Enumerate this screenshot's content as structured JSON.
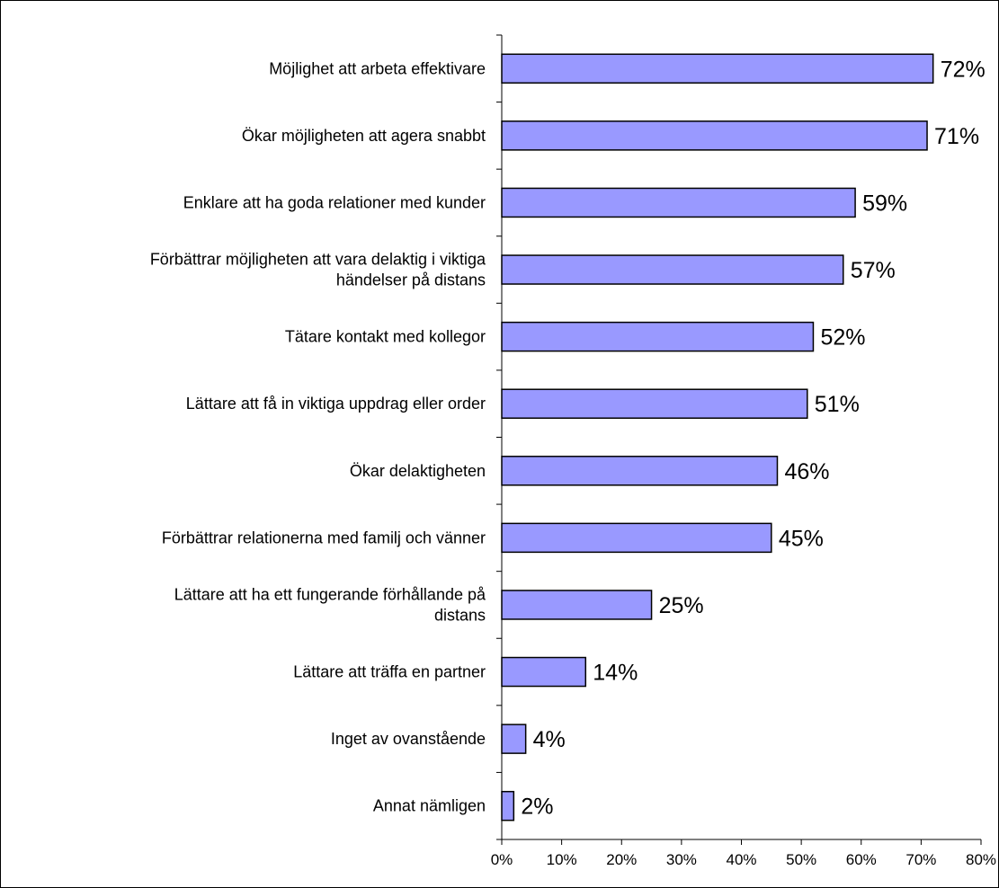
{
  "chart_data": {
    "type": "bar",
    "orientation": "horizontal",
    "title": "",
    "xlabel": "",
    "ylabel": "",
    "categories": [
      "Möjlighet att arbeta effektivare",
      "Ökar möjligheten att agera snabbt",
      "Enklare att ha goda relationer med kunder",
      "Förbättrar möjligheten att vara delaktig i viktiga händelser på distans",
      "Tätare kontakt med kollegor",
      "Lättare att få in viktiga uppdrag eller order",
      "Ökar delaktigheten",
      "Förbättrar relationerna med familj och vänner",
      "Lättare att ha ett fungerande förhållande på distans",
      "Lättare att träffa en partner",
      "Inget av ovanstående",
      "Annat nämligen"
    ],
    "category_lines": [
      [
        "Möjlighet att arbeta effektivare"
      ],
      [
        "Ökar möjligheten att agera snabbt"
      ],
      [
        "Enklare att ha goda relationer med kunder"
      ],
      [
        "Förbättrar möjligheten att vara delaktig i viktiga",
        "händelser på distans"
      ],
      [
        "Tätare kontakt med kollegor"
      ],
      [
        "Lättare att få in viktiga uppdrag eller order"
      ],
      [
        "Ökar delaktigheten"
      ],
      [
        "Förbättrar relationerna med familj och vänner"
      ],
      [
        "Lättare att ha ett fungerande förhållande på",
        "distans"
      ],
      [
        "Lättare att träffa en partner"
      ],
      [
        "Inget av ovanstående"
      ],
      [
        "Annat nämligen"
      ]
    ],
    "values": [
      72,
      71,
      59,
      57,
      52,
      51,
      46,
      45,
      25,
      14,
      4,
      2
    ],
    "value_labels": [
      "72%",
      "71%",
      "59%",
      "57%",
      "52%",
      "51%",
      "46%",
      "45%",
      "25%",
      "14%",
      "4%",
      "2%"
    ],
    "xlim": [
      0,
      80
    ],
    "x_ticks": [
      0,
      10,
      20,
      30,
      40,
      50,
      60,
      70,
      80
    ],
    "x_tick_labels": [
      "0%",
      "10%",
      "20%",
      "30%",
      "40%",
      "50%",
      "60%",
      "70%",
      "80%"
    ],
    "grid": false,
    "legend": "none",
    "colors": {
      "bar_fill": "#9999ff",
      "bar_stroke": "#000000",
      "axis": "#000000"
    }
  }
}
